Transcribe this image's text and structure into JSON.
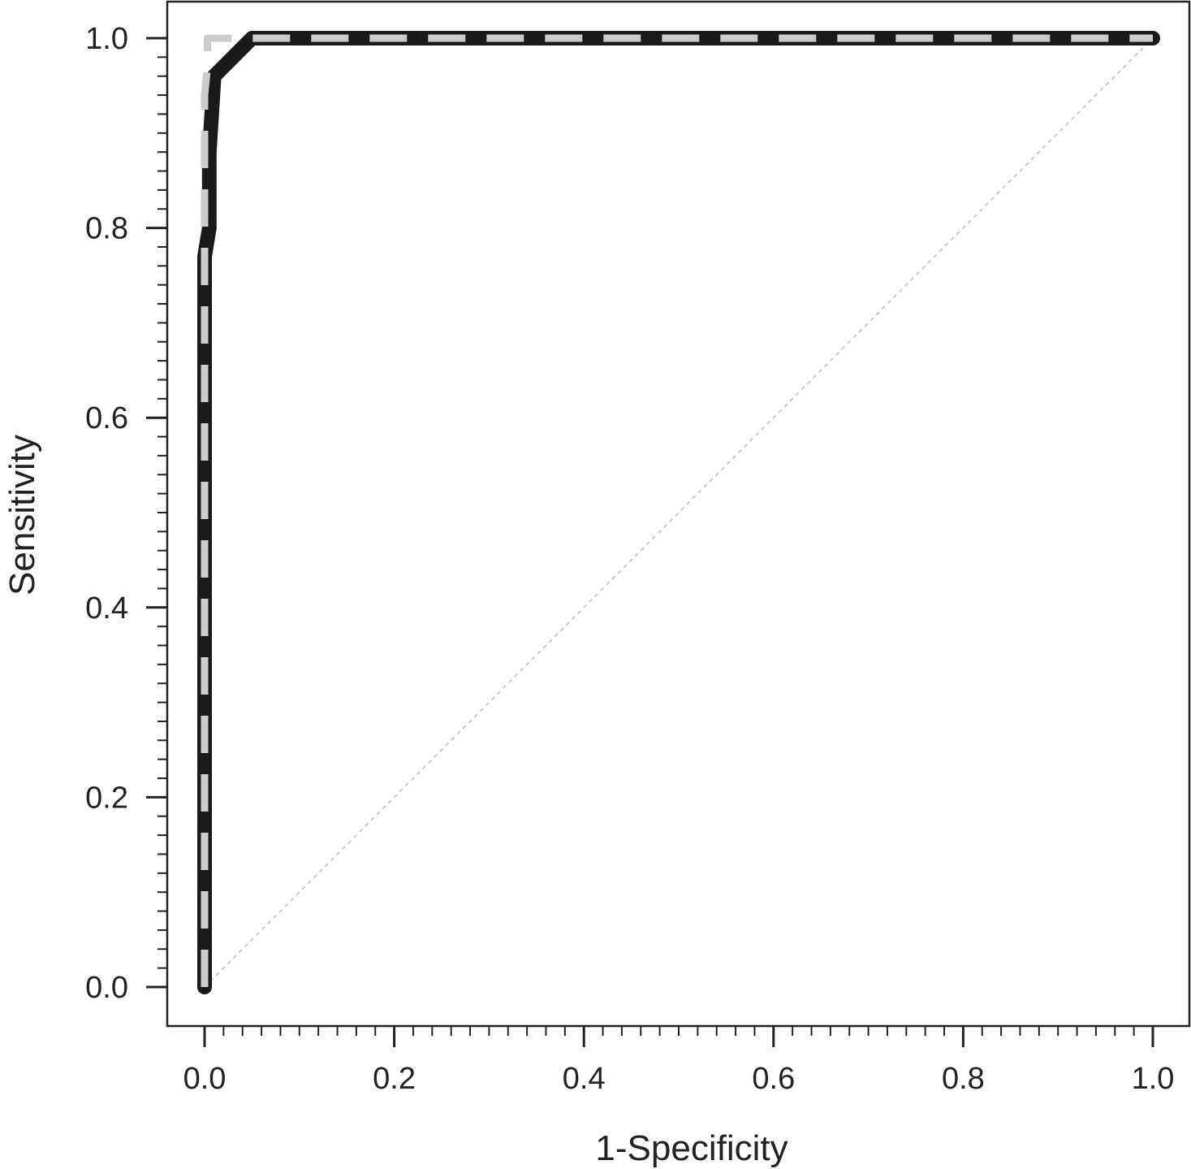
{
  "chart_data": {
    "type": "line",
    "title": "",
    "xlabel": "1-Specificity",
    "ylabel": "Sensitivity",
    "xlim": [
      0,
      1
    ],
    "ylim": [
      0,
      1
    ],
    "x_ticks": [
      "0.0",
      "0.2",
      "0.4",
      "0.6",
      "0.8",
      "1.0"
    ],
    "y_ticks": [
      "0.0",
      "0.2",
      "0.4",
      "0.6",
      "0.8",
      "1.0"
    ],
    "grid": false,
    "legend": "none",
    "series": [
      {
        "style": "solid-thick",
        "color": "#1a1a1a",
        "x": [
          0.0,
          0.0,
          0.005,
          0.005,
          0.01,
          0.01,
          0.05,
          1.0
        ],
        "y": [
          0.0,
          0.77,
          0.8,
          0.88,
          0.96,
          0.96,
          1.0,
          1.0
        ]
      },
      {
        "style": "dashed-thick",
        "color": "#cccccc",
        "x": [
          0.0,
          0.0,
          0.003,
          0.003,
          0.03,
          1.0
        ],
        "y": [
          0.0,
          0.94,
          0.97,
          1.0,
          1.0,
          1.0
        ]
      },
      {
        "style": "dotted-diagonal",
        "color": "#bbbbbb",
        "x": [
          0.0,
          1.0
        ],
        "y": [
          0.0,
          1.0
        ]
      }
    ]
  }
}
